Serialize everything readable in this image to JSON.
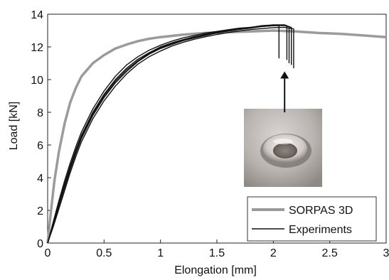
{
  "chart_data": {
    "type": "line",
    "xlabel": "Elongation [mm]",
    "ylabel": "Load [kN]",
    "xlim": [
      0,
      3
    ],
    "ylim": [
      0,
      14
    ],
    "xticks": [
      "0",
      "0.5",
      "1",
      "1.5",
      "2",
      "2.5",
      "3"
    ],
    "yticks": [
      "0",
      "2",
      "4",
      "6",
      "8",
      "10",
      "12",
      "14"
    ],
    "grid": false,
    "legend_placement": "bottom-right",
    "colors": {
      "sorpas": "#9e9a99",
      "experiments": "#111111"
    },
    "series": [
      {
        "name": "SORPAS 3D",
        "color": "#9e9a99",
        "x": [
          0,
          0.03,
          0.06,
          0.1,
          0.15,
          0.2,
          0.25,
          0.3,
          0.4,
          0.5,
          0.6,
          0.7,
          0.8,
          0.9,
          1.0,
          1.2,
          1.4,
          1.6,
          1.8,
          2.0,
          2.2,
          2.4,
          2.6,
          2.8,
          3.0
        ],
        "y": [
          0,
          2.0,
          3.8,
          5.6,
          7.3,
          8.6,
          9.5,
          10.2,
          11.0,
          11.5,
          11.9,
          12.15,
          12.35,
          12.5,
          12.6,
          12.75,
          12.85,
          12.9,
          12.95,
          13.0,
          12.95,
          12.85,
          12.8,
          12.7,
          12.6
        ]
      },
      {
        "name": "Experiments",
        "color": "#111111",
        "curves": [
          {
            "x": [
              0,
              0.05,
              0.1,
              0.15,
              0.2,
              0.25,
              0.3,
              0.4,
              0.5,
              0.6,
              0.7,
              0.8,
              0.9,
              1.0,
              1.1,
              1.2,
              1.3,
              1.4,
              1.5,
              1.6,
              1.7,
              1.8,
              1.9,
              2.0,
              2.05,
              2.05
            ],
            "y": [
              0,
              1.3,
              2.6,
              3.8,
              4.9,
              5.9,
              6.8,
              8.2,
              9.3,
              10.2,
              10.9,
              11.4,
              11.8,
              12.1,
              12.35,
              12.55,
              12.7,
              12.85,
              12.95,
              13.05,
              13.15,
              13.2,
              13.25,
              13.3,
              13.3,
              11.3
            ]
          },
          {
            "x": [
              0,
              0.05,
              0.1,
              0.15,
              0.2,
              0.25,
              0.3,
              0.4,
              0.5,
              0.6,
              0.7,
              0.8,
              0.9,
              1.0,
              1.1,
              1.2,
              1.3,
              1.4,
              1.5,
              1.6,
              1.7,
              1.8,
              1.9,
              2.0,
              2.1,
              2.12,
              2.12
            ],
            "y": [
              0,
              1.2,
              2.4,
              3.6,
              4.7,
              5.7,
              6.6,
              8.0,
              9.1,
              10.0,
              10.7,
              11.25,
              11.65,
              12.0,
              12.25,
              12.45,
              12.62,
              12.78,
              12.9,
              13.0,
              13.1,
              13.2,
              13.3,
              13.35,
              13.35,
              13.3,
              11.2
            ]
          },
          {
            "x": [
              0,
              0.05,
              0.1,
              0.15,
              0.2,
              0.25,
              0.3,
              0.4,
              0.5,
              0.6,
              0.7,
              0.8,
              0.9,
              1.0,
              1.1,
              1.2,
              1.3,
              1.4,
              1.5,
              1.6,
              1.7,
              1.8,
              1.9,
              2.0,
              2.1,
              2.16,
              2.16
            ],
            "y": [
              0,
              1.1,
              2.3,
              3.4,
              4.5,
              5.5,
              6.4,
              7.8,
              8.9,
              9.8,
              10.5,
              11.1,
              11.55,
              11.9,
              12.15,
              12.38,
              12.55,
              12.7,
              12.85,
              12.97,
              13.07,
              13.15,
              13.25,
              13.3,
              13.3,
              13.2,
              10.9
            ]
          },
          {
            "x": [
              0,
              0.05,
              0.1,
              0.15,
              0.2,
              0.25,
              0.3,
              0.4,
              0.5,
              0.6,
              0.7,
              0.8,
              0.9,
              1.0,
              1.1,
              1.2,
              1.3,
              1.4,
              1.5,
              1.6,
              1.7,
              1.8,
              1.9,
              2.0,
              2.1,
              2.18,
              2.18
            ],
            "y": [
              0,
              1.0,
              2.1,
              3.2,
              4.3,
              5.3,
              6.2,
              7.6,
              8.7,
              9.6,
              10.35,
              10.95,
              11.4,
              11.75,
              12.05,
              12.28,
              12.47,
              12.62,
              12.76,
              12.88,
              12.98,
              13.06,
              13.12,
              13.18,
              13.2,
              13.1,
              10.7
            ]
          },
          {
            "x": [
              0,
              0.05,
              0.1,
              0.15,
              0.2,
              0.25,
              0.3,
              0.4,
              0.5,
              0.6,
              0.7,
              0.8,
              0.9,
              1.0,
              1.1,
              1.2,
              1.3,
              1.4,
              1.5,
              1.6,
              1.7,
              1.8,
              1.9,
              2.0,
              2.1,
              2.14,
              2.14
            ],
            "y": [
              0,
              1.15,
              2.35,
              3.5,
              4.6,
              5.6,
              6.5,
              7.9,
              9.0,
              9.9,
              10.6,
              11.15,
              11.6,
              11.95,
              12.2,
              12.42,
              12.6,
              12.75,
              12.88,
              13.0,
              13.1,
              13.18,
              13.26,
              13.32,
              13.32,
              13.25,
              11.0
            ]
          }
        ]
      }
    ],
    "annotations": [
      {
        "type": "arrow",
        "pointing_to": "fracture point of experiments",
        "from": [
          2.1,
          8.0
        ],
        "to": [
          2.1,
          10.5
        ]
      },
      {
        "type": "inset_photo",
        "depicts": "weld nugget specimen"
      }
    ]
  }
}
